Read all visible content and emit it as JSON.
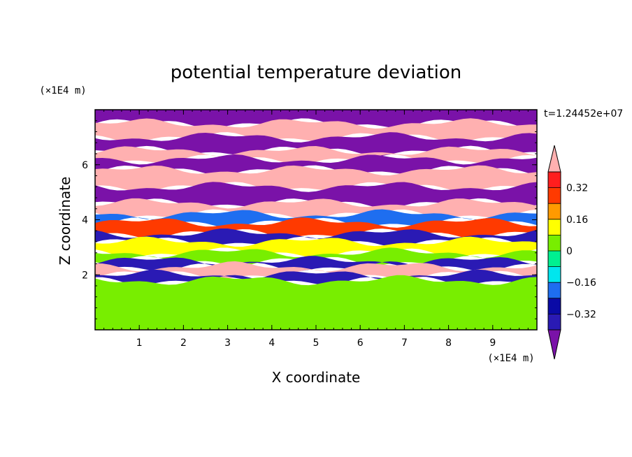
{
  "chart_data": {
    "type": "heatmap",
    "title": "potential temperature deviation",
    "xlabel": "X coordinate",
    "ylabel": "Z coordinate",
    "x_unit": "(×1E4 m)",
    "y_unit": "(×1E4 m)",
    "time_label": "t=1.24452e+07",
    "xlim": [
      0,
      10
    ],
    "ylim": [
      0,
      8
    ],
    "x_ticks": [
      "1",
      "2",
      "3",
      "4",
      "5",
      "6",
      "7",
      "8",
      "9"
    ],
    "y_ticks": [
      "2",
      "4",
      "6"
    ],
    "colorbar": {
      "levels": [
        -0.4,
        -0.32,
        -0.24,
        -0.16,
        -0.08,
        0,
        0.08,
        0.16,
        0.24,
        0.32,
        0.4
      ],
      "tick_labels": [
        "0.32",
        "0.16",
        "0",
        "−0.16",
        "−0.32"
      ],
      "tick_values": [
        0.32,
        0.16,
        0,
        -0.16,
        -0.32
      ],
      "colors": [
        "#7a12a8",
        "#2a1ab4",
        "#0a0aa6",
        "#1e6ef0",
        "#00e6ee",
        "#00f090",
        "#78ee00",
        "#ffff00",
        "#ff9a00",
        "#ff3a00",
        "#ff1e1e",
        "#ffb0b0"
      ],
      "extend": "both"
    },
    "bands": [
      {
        "z": [
          7.5,
          8.0
        ],
        "value": -0.45
      },
      {
        "z": [
          7.0,
          7.5
        ],
        "value": 0.45
      },
      {
        "z": [
          6.5,
          7.0
        ],
        "value": -0.45
      },
      {
        "z": [
          6.2,
          6.5
        ],
        "value": 0.45
      },
      {
        "z": [
          5.8,
          6.2
        ],
        "value": -0.45
      },
      {
        "z": [
          5.2,
          5.8
        ],
        "value": 0.45
      },
      {
        "z": [
          4.6,
          5.2
        ],
        "value": -0.45
      },
      {
        "z": [
          4.2,
          4.6
        ],
        "value": 0.45
      },
      {
        "z": [
          3.9,
          4.2
        ],
        "value": -0.2
      },
      {
        "z": [
          3.5,
          3.9
        ],
        "value": 0.3
      },
      {
        "z": [
          3.2,
          3.5
        ],
        "value": -0.4
      },
      {
        "z": [
          2.8,
          3.2
        ],
        "value": 0.15
      },
      {
        "z": [
          2.5,
          2.8
        ],
        "value": 0.05
      },
      {
        "z": [
          2.3,
          2.5
        ],
        "value": -0.4
      },
      {
        "z": [
          2.0,
          2.3
        ],
        "value": 0.45
      },
      {
        "z": [
          1.8,
          2.0
        ],
        "value": -0.4
      },
      {
        "z": [
          0.0,
          1.8
        ],
        "value": 0.05
      }
    ]
  }
}
